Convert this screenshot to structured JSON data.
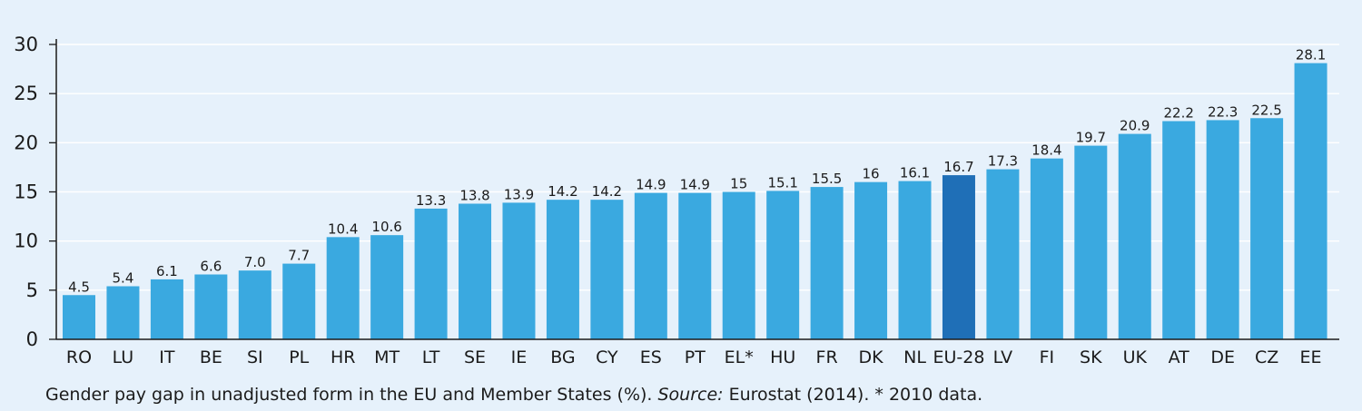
{
  "chart_data": {
    "type": "bar",
    "categories": [
      "RO",
      "LU",
      "IT",
      "BE",
      "SI",
      "PL",
      "HR",
      "MT",
      "LT",
      "SE",
      "IE",
      "BG",
      "CY",
      "ES",
      "PT",
      "EL*",
      "HU",
      "FR",
      "DK",
      "NL",
      "EU-28",
      "LV",
      "FI",
      "SK",
      "UK",
      "AT",
      "DE",
      "CZ",
      "EE"
    ],
    "values": [
      4.5,
      5.4,
      6.1,
      6.6,
      7.0,
      7.7,
      10.4,
      10.6,
      13.3,
      13.8,
      13.9,
      14.2,
      14.2,
      14.9,
      14.9,
      15,
      15.1,
      15.5,
      16,
      16.1,
      16.7,
      17.3,
      18.4,
      19.7,
      20.9,
      22.2,
      22.3,
      22.5,
      28.1
    ],
    "value_labels": [
      "4.5",
      "5.4",
      "6.1",
      "6.6",
      "7.0",
      "7.7",
      "10.4",
      "10.6",
      "13.3",
      "13.8",
      "13.9",
      "14.2",
      "14.2",
      "14.9",
      "14.9",
      "15",
      "15.1",
      "15.5",
      "16",
      "16.1",
      "16.7",
      "17.3",
      "18.4",
      "19.7",
      "20.9",
      "22.2",
      "22.3",
      "22.5",
      "28.1"
    ],
    "highlight": "EU-28",
    "ylim": [
      0,
      30
    ],
    "yticks": [
      0,
      5,
      10,
      15,
      20,
      25,
      30
    ],
    "grid": true,
    "colors": {
      "bar": "#3aa9e0",
      "highlight": "#1f6fb7",
      "axis": "#1b1b1b",
      "grid": "#ffffff"
    }
  },
  "caption": {
    "text_before": "Gender pay gap in unadjusted form in the EU and Member States (%). ",
    "source_label": "Source:",
    "text_after": " Eurostat (2014). * 2010 data."
  }
}
